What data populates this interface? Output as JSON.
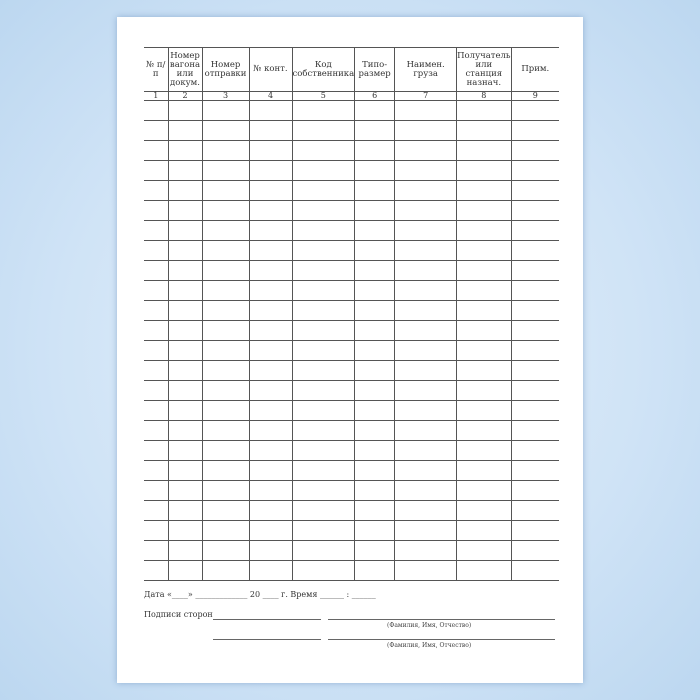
{
  "table": {
    "headers": [
      "№ п/п",
      "Номер вагона или докум.",
      "Номер отправки",
      "№ конт.",
      "Код собственника",
      "Типо-размер",
      "Наимен. груза",
      "Получатель или станция назнач.",
      "Прим."
    ],
    "column_numbers": [
      "1",
      "2",
      "3",
      "4",
      "5",
      "6",
      "7",
      "8",
      "9"
    ]
  },
  "footer": {
    "date_line": "Дата «____» _____________ 20 ____ г.  Время ______ : ______",
    "signatures_label": "Подписи сторон",
    "name_caption_1": "(Фамилия, Имя, Отчество)",
    "name_caption_2": "(Фамилия, Имя, Отчество)"
  }
}
